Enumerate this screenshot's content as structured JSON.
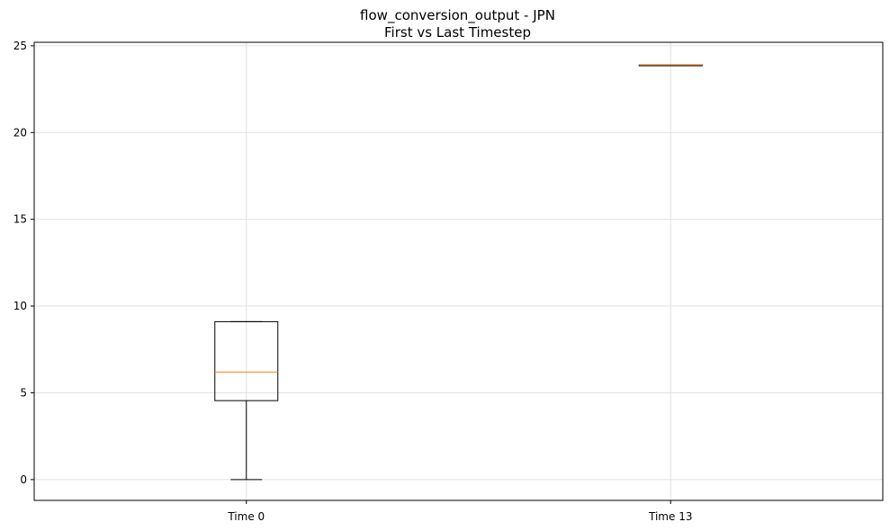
{
  "chart_data": {
    "type": "box",
    "title": "flow_conversion_output - JPN",
    "subtitle": "First vs Last Timestep",
    "xlabel": "",
    "ylabel": "",
    "ylim": [
      -1.2,
      25.2
    ],
    "yticks": [
      0,
      5,
      10,
      15,
      20,
      25
    ],
    "ytick_labels": [
      "0",
      "5",
      "10",
      "15",
      "20",
      "25"
    ],
    "categories": [
      "Time 0",
      "Time 13"
    ],
    "boxes": [
      {
        "label": "Time 0",
        "whisker_low": 0.0,
        "q1": 4.55,
        "median": 6.2,
        "q3": 9.1,
        "whisker_high": 9.1
      },
      {
        "label": "Time 13",
        "whisker_low": 23.9,
        "q1": 23.9,
        "median": 23.9,
        "q3": 23.9,
        "whisker_high": 23.9
      }
    ],
    "grid": true,
    "colors": {
      "box": "#000000",
      "median": "#ff7f0e",
      "grid": "#e0e0e0"
    }
  }
}
